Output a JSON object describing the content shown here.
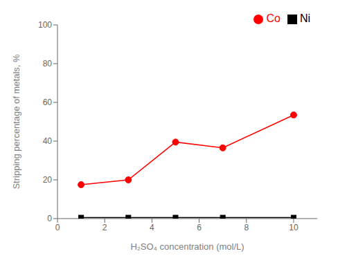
{
  "chart_data": {
    "type": "line",
    "x": [
      1,
      3,
      5,
      7,
      10
    ],
    "series": [
      {
        "name": "Ni",
        "color": "#000000",
        "marker": "square",
        "values": [
          0.5,
          0.5,
          0.5,
          0.5,
          0.5
        ]
      },
      {
        "name": "Co",
        "color": "#ff0000",
        "marker": "circle",
        "values": [
          17.5,
          20.0,
          39.5,
          36.5,
          53.5
        ]
      }
    ],
    "xlabel": "H₂SO₄ concentration (mol/L)",
    "ylabel": "Stripping percentage of metals, %",
    "xlim": [
      0,
      11
    ],
    "ylim": [
      0,
      100
    ],
    "xticks": [
      0,
      2,
      4,
      6,
      8,
      10
    ],
    "yticks": [
      0,
      20,
      40,
      60,
      80,
      100
    ],
    "grid": false,
    "legend": "upper right"
  }
}
